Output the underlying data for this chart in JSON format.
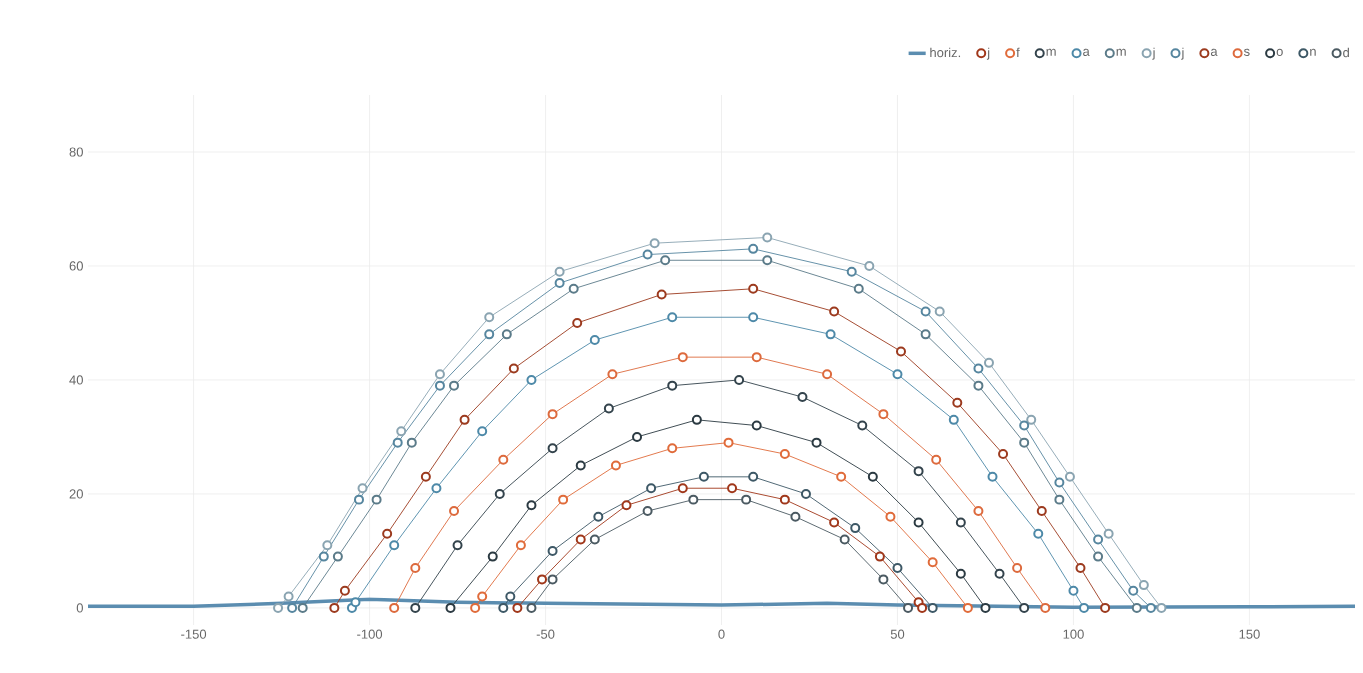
{
  "chart_data": {
    "type": "line",
    "xlim": [
      -180,
      180
    ],
    "ylim": [
      -3,
      90
    ],
    "xticks": [
      -150,
      -100,
      -50,
      0,
      50,
      100,
      150
    ],
    "yticks": [
      0,
      20,
      40,
      60,
      80
    ],
    "grid": true,
    "legend": "top right",
    "marker": "circle",
    "line_style": "solid",
    "series": [
      {
        "name": "horiz.",
        "color": "#5b8db0",
        "marker": "none",
        "x": [
          -180,
          -150,
          -125,
          -100,
          -75,
          -50,
          0,
          30,
          50,
          100,
          150,
          180
        ],
        "values": [
          0.3,
          0.3,
          0.8,
          1.5,
          1,
          0.8,
          0.5,
          0.8,
          0.5,
          0.1,
          0.2,
          0.3
        ]
      },
      {
        "name": "j",
        "color": "#a0371a",
        "x": [
          -58,
          -51,
          -40,
          -27,
          -11,
          3,
          18,
          32,
          45,
          56,
          57
        ],
        "values": [
          0,
          5,
          12,
          18,
          21,
          21,
          19,
          15,
          9,
          1,
          0
        ]
      },
      {
        "name": "f",
        "color": "#e06b3a",
        "x": [
          -70,
          -68,
          -57,
          -45,
          -30,
          -14,
          2,
          18,
          34,
          48,
          60,
          70
        ],
        "values": [
          0,
          2,
          11,
          19,
          25,
          28,
          29,
          27,
          23,
          16,
          8,
          0
        ]
      },
      {
        "name": "m",
        "color": "#33434c",
        "x": [
          -87,
          -75,
          -63,
          -48,
          -32,
          -14,
          5,
          23,
          40,
          56,
          68,
          79,
          86
        ],
        "values": [
          0,
          11,
          20,
          28,
          35,
          39,
          40,
          37,
          32,
          24,
          15,
          6,
          0
        ]
      },
      {
        "name": "a",
        "color": "#4d89a8",
        "x": [
          -105,
          -104,
          -93,
          -81,
          -68,
          -54,
          -36,
          -14,
          9,
          31,
          50,
          66,
          77,
          90,
          100,
          103
        ],
        "values": [
          0,
          1,
          11,
          21,
          31,
          40,
          47,
          51,
          51,
          48,
          41,
          33,
          23,
          13,
          3,
          0
        ]
      },
      {
        "name": "m",
        "color": "#5b7b89",
        "x": [
          -119,
          -109,
          -98,
          -88,
          -76,
          -61,
          -42,
          -16,
          13,
          39,
          58,
          73,
          86,
          96,
          107,
          118
        ],
        "values": [
          0,
          9,
          19,
          29,
          39,
          48,
          56,
          61,
          61,
          56,
          48,
          39,
          29,
          19,
          9,
          0
        ]
      },
      {
        "name": "j",
        "color": "#8aa4b1",
        "x": [
          -126,
          -123,
          -112,
          -102,
          -91,
          -80,
          -66,
          -46,
          -19,
          13,
          42,
          62,
          76,
          88,
          99,
          110,
          120,
          125
        ],
        "values": [
          0,
          2,
          11,
          21,
          31,
          41,
          51,
          59,
          64,
          65,
          60,
          52,
          43,
          33,
          23,
          13,
          4,
          0
        ]
      },
      {
        "name": "j",
        "color": "#56869f",
        "x": [
          -122,
          -113,
          -103,
          -92,
          -80,
          -66,
          -46,
          -21,
          9,
          37,
          58,
          73,
          86,
          96,
          107,
          117,
          122
        ],
        "values": [
          0,
          9,
          19,
          29,
          39,
          48,
          57,
          62,
          63,
          59,
          52,
          42,
          32,
          22,
          12,
          3,
          0
        ]
      },
      {
        "name": "a",
        "color": "#9c3a1e",
        "x": [
          -110,
          -107,
          -95,
          -84,
          -73,
          -59,
          -41,
          -17,
          9,
          32,
          51,
          67,
          80,
          91,
          102,
          109
        ],
        "values": [
          0,
          3,
          13,
          23,
          33,
          42,
          50,
          55,
          56,
          52,
          45,
          36,
          27,
          17,
          7,
          0
        ]
      },
      {
        "name": "s",
        "color": "#dd6a3d",
        "x": [
          -93,
          -87,
          -76,
          -62,
          -48,
          -31,
          -11,
          10,
          30,
          46,
          61,
          73,
          84,
          92
        ],
        "values": [
          0,
          7,
          17,
          26,
          34,
          41,
          44,
          44,
          41,
          34,
          26,
          17,
          7,
          0
        ]
      },
      {
        "name": "o",
        "color": "#2b3a42",
        "x": [
          -77,
          -65,
          -54,
          -40,
          -24,
          -7,
          10,
          27,
          43,
          56,
          68,
          75
        ],
        "values": [
          0,
          9,
          18,
          25,
          30,
          33,
          32,
          29,
          23,
          15,
          6,
          0
        ]
      },
      {
        "name": "n",
        "color": "#3d5866",
        "x": [
          -62,
          -60,
          -48,
          -35,
          -20,
          -5,
          9,
          24,
          38,
          50,
          60
        ],
        "values": [
          0,
          2,
          10,
          16,
          21,
          23,
          23,
          20,
          14,
          7,
          0
        ]
      },
      {
        "name": "d",
        "color": "#4b5a62",
        "x": [
          -54,
          -48,
          -36,
          -21,
          -8,
          7,
          21,
          35,
          46,
          53
        ],
        "values": [
          0,
          5,
          12,
          17,
          19,
          19,
          16,
          12,
          5,
          0
        ]
      }
    ]
  }
}
